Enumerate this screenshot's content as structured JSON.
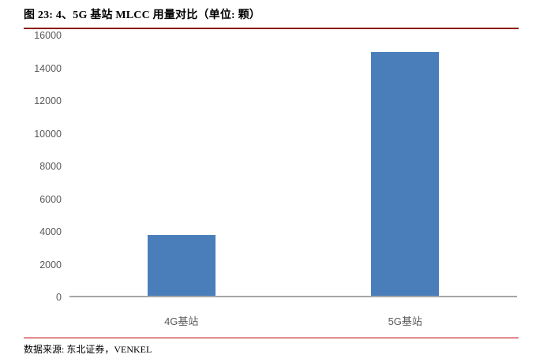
{
  "header": {
    "title": "图 23: 4、5G 基站 MLCC 用量对比（单位: 颗）"
  },
  "footer": {
    "source": "数据来源: 东北证券，VENKEL"
  },
  "colors": {
    "bar": "#4a7ebb",
    "header_rule": "#8b1a10",
    "footer_rule": "#c00000",
    "axis_line": "#a6a6a6",
    "tick_text": "#595959"
  },
  "chart_data": {
    "type": "bar",
    "title": "4、5G 基站 MLCC 用量对比",
    "unit": "颗",
    "categories": [
      "4G基站",
      "5G基站"
    ],
    "values": [
      3750,
      15000
    ],
    "xlabel": "",
    "ylabel": "",
    "ylim": [
      0,
      16000
    ],
    "ytick_step": 2000,
    "yticks": [
      0,
      2000,
      4000,
      6000,
      8000,
      10000,
      12000,
      14000,
      16000
    ],
    "grid": false,
    "legend": false
  }
}
